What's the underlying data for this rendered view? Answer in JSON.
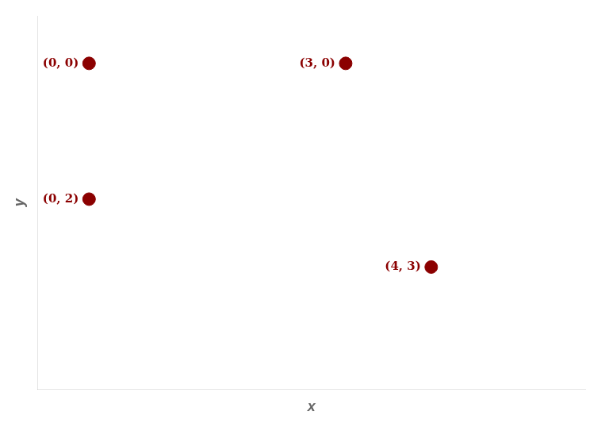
{
  "chart_data": {
    "type": "scatter",
    "x": [
      0,
      3,
      0,
      4
    ],
    "values": [
      0,
      0,
      2,
      3
    ],
    "value_labels": [
      "(0, 0)",
      "(3, 0)",
      "(0, 2)",
      "(4, 3)"
    ],
    "data_labels": true,
    "x_label": "x",
    "y_label": "y",
    "xlim": [
      -0.6,
      5.8
    ],
    "ylim": [
      4.8,
      -0.7
    ],
    "tick_labels": false,
    "grid": false,
    "color": "#8b0000"
  }
}
